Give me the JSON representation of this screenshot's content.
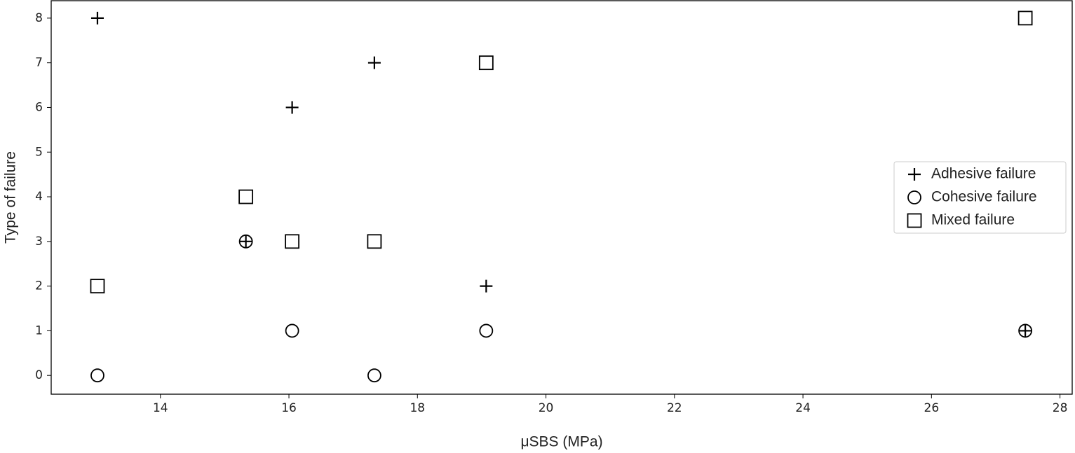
{
  "chart_data": {
    "type": "scatter",
    "xlabel": "μSBS (MPa)",
    "ylabel": "Type of failure",
    "xlim": [
      12.3,
      28.19
    ],
    "ylim": [
      -0.42,
      8.39
    ],
    "xticks": [
      14,
      16,
      18,
      20,
      22,
      24,
      26,
      28
    ],
    "yticks": [
      0,
      1,
      2,
      3,
      4,
      5,
      6,
      7,
      8
    ],
    "legend": "center right",
    "series": [
      {
        "name": "Adhesive failure",
        "color": "#000000",
        "marker": "plus",
        "x": [
          13.02,
          17.33,
          16.05,
          15.33,
          19.07,
          27.46
        ],
        "values": [
          8,
          7,
          6,
          3,
          2,
          1
        ]
      },
      {
        "name": "Cohesive failure",
        "color": "#000000",
        "marker": "circle",
        "x": [
          13.02,
          16.05,
          17.33,
          19.07,
          15.33,
          27.46
        ],
        "values": [
          0,
          1,
          0,
          1,
          3,
          1
        ]
      },
      {
        "name": "Mixed failure",
        "color": "#000000",
        "marker": "square",
        "x": [
          27.46,
          19.07,
          15.33,
          16.05,
          17.33,
          13.02
        ],
        "values": [
          8,
          7,
          4,
          3,
          3,
          2
        ]
      }
    ]
  }
}
